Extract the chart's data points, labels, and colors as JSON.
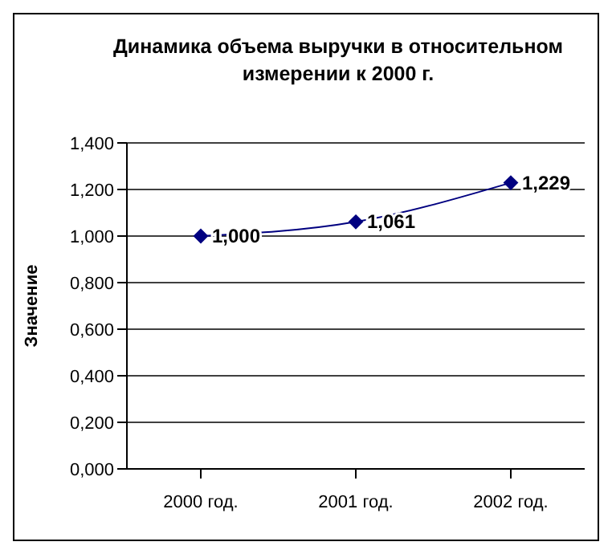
{
  "chart_data": {
    "type": "line",
    "title": "Динамика объема выручки в относительном измерении к 2000 г.",
    "ylabel": "Значение",
    "categories": [
      "2000 год.",
      "2001 год.",
      "2002 год."
    ],
    "series": [
      {
        "color": "#000080",
        "values": [
          1.0,
          1.061,
          1.229
        ],
        "value_labels": [
          "1,000",
          "1,061",
          "1,229"
        ]
      }
    ],
    "ylim": [
      0,
      1.4
    ],
    "yticks": [
      {
        "value": 0,
        "label": "0,000"
      },
      {
        "value": 0.2,
        "label": "0,200"
      },
      {
        "value": 0.4,
        "label": "0,400"
      },
      {
        "value": 0.6,
        "label": "0,600"
      },
      {
        "value": 0.8,
        "label": "0,800"
      },
      {
        "value": 1.0,
        "label": "1,000"
      },
      {
        "value": 1.2,
        "label": "1,200"
      },
      {
        "value": 1.4,
        "label": "1,400"
      }
    ],
    "grid": "y",
    "marker": "diamond",
    "line_style": "solid"
  }
}
